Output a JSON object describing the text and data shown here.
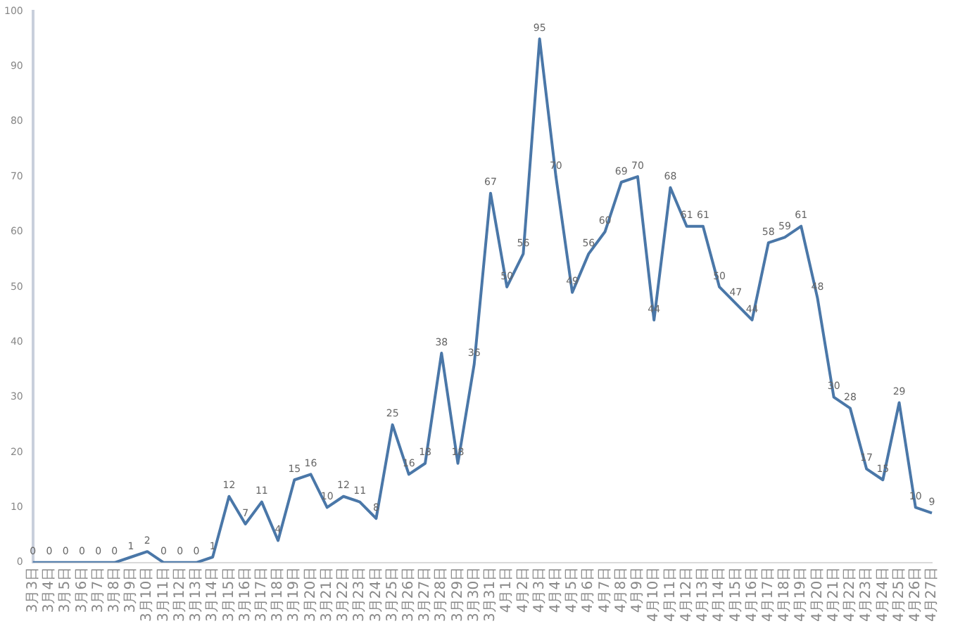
{
  "chart_data": {
    "type": "line",
    "categories": [
      "3月3日",
      "3月4日",
      "3月5日",
      "3月6日",
      "3月7日",
      "3月8日",
      "3月9日",
      "3月10日",
      "3月11日",
      "3月12日",
      "3月13日",
      "3月14日",
      "3月15日",
      "3月16日",
      "3月17日",
      "3月18日",
      "3月19日",
      "3月20日",
      "3月21日",
      "3月22日",
      "3月23日",
      "3月24日",
      "3月25日",
      "3月26日",
      "3月27日",
      "3月28日",
      "3月29日",
      "3月30日",
      "3月31日",
      "4月1日",
      "4月2日",
      "4月3日",
      "4月4日",
      "4月5日",
      "4月6日",
      "4月7日",
      "4月8日",
      "4月9日",
      "4月10日",
      "4月11日",
      "4月12日",
      "4月13日",
      "4月14日",
      "4月15日",
      "4月16日",
      "4月17日",
      "4月18日",
      "4月19日",
      "4月20日",
      "4月21日",
      "4月22日",
      "4月23日",
      "4月24日",
      "4月25日",
      "4月26日",
      "4月27日"
    ],
    "series": [
      {
        "color": "#4a77a8",
        "values": [
          0,
          0,
          0,
          0,
          0,
          0,
          1,
          2,
          0,
          0,
          0,
          1,
          12,
          7,
          11,
          4,
          15,
          16,
          10,
          12,
          11,
          8,
          25,
          16,
          18,
          38,
          18,
          36,
          67,
          50,
          56,
          95,
          70,
          49,
          56,
          60,
          69,
          70,
          44,
          68,
          61,
          61,
          50,
          47,
          44,
          58,
          59,
          61,
          48,
          30,
          28,
          17,
          15,
          29,
          10,
          9
        ]
      }
    ],
    "ylim": [
      0,
      100
    ],
    "yticks": [
      0,
      10,
      20,
      30,
      40,
      50,
      60,
      70,
      80,
      90,
      100
    ],
    "grid": false,
    "legend": false,
    "marker": "none",
    "line_style": "solid",
    "data_labels": true
  }
}
